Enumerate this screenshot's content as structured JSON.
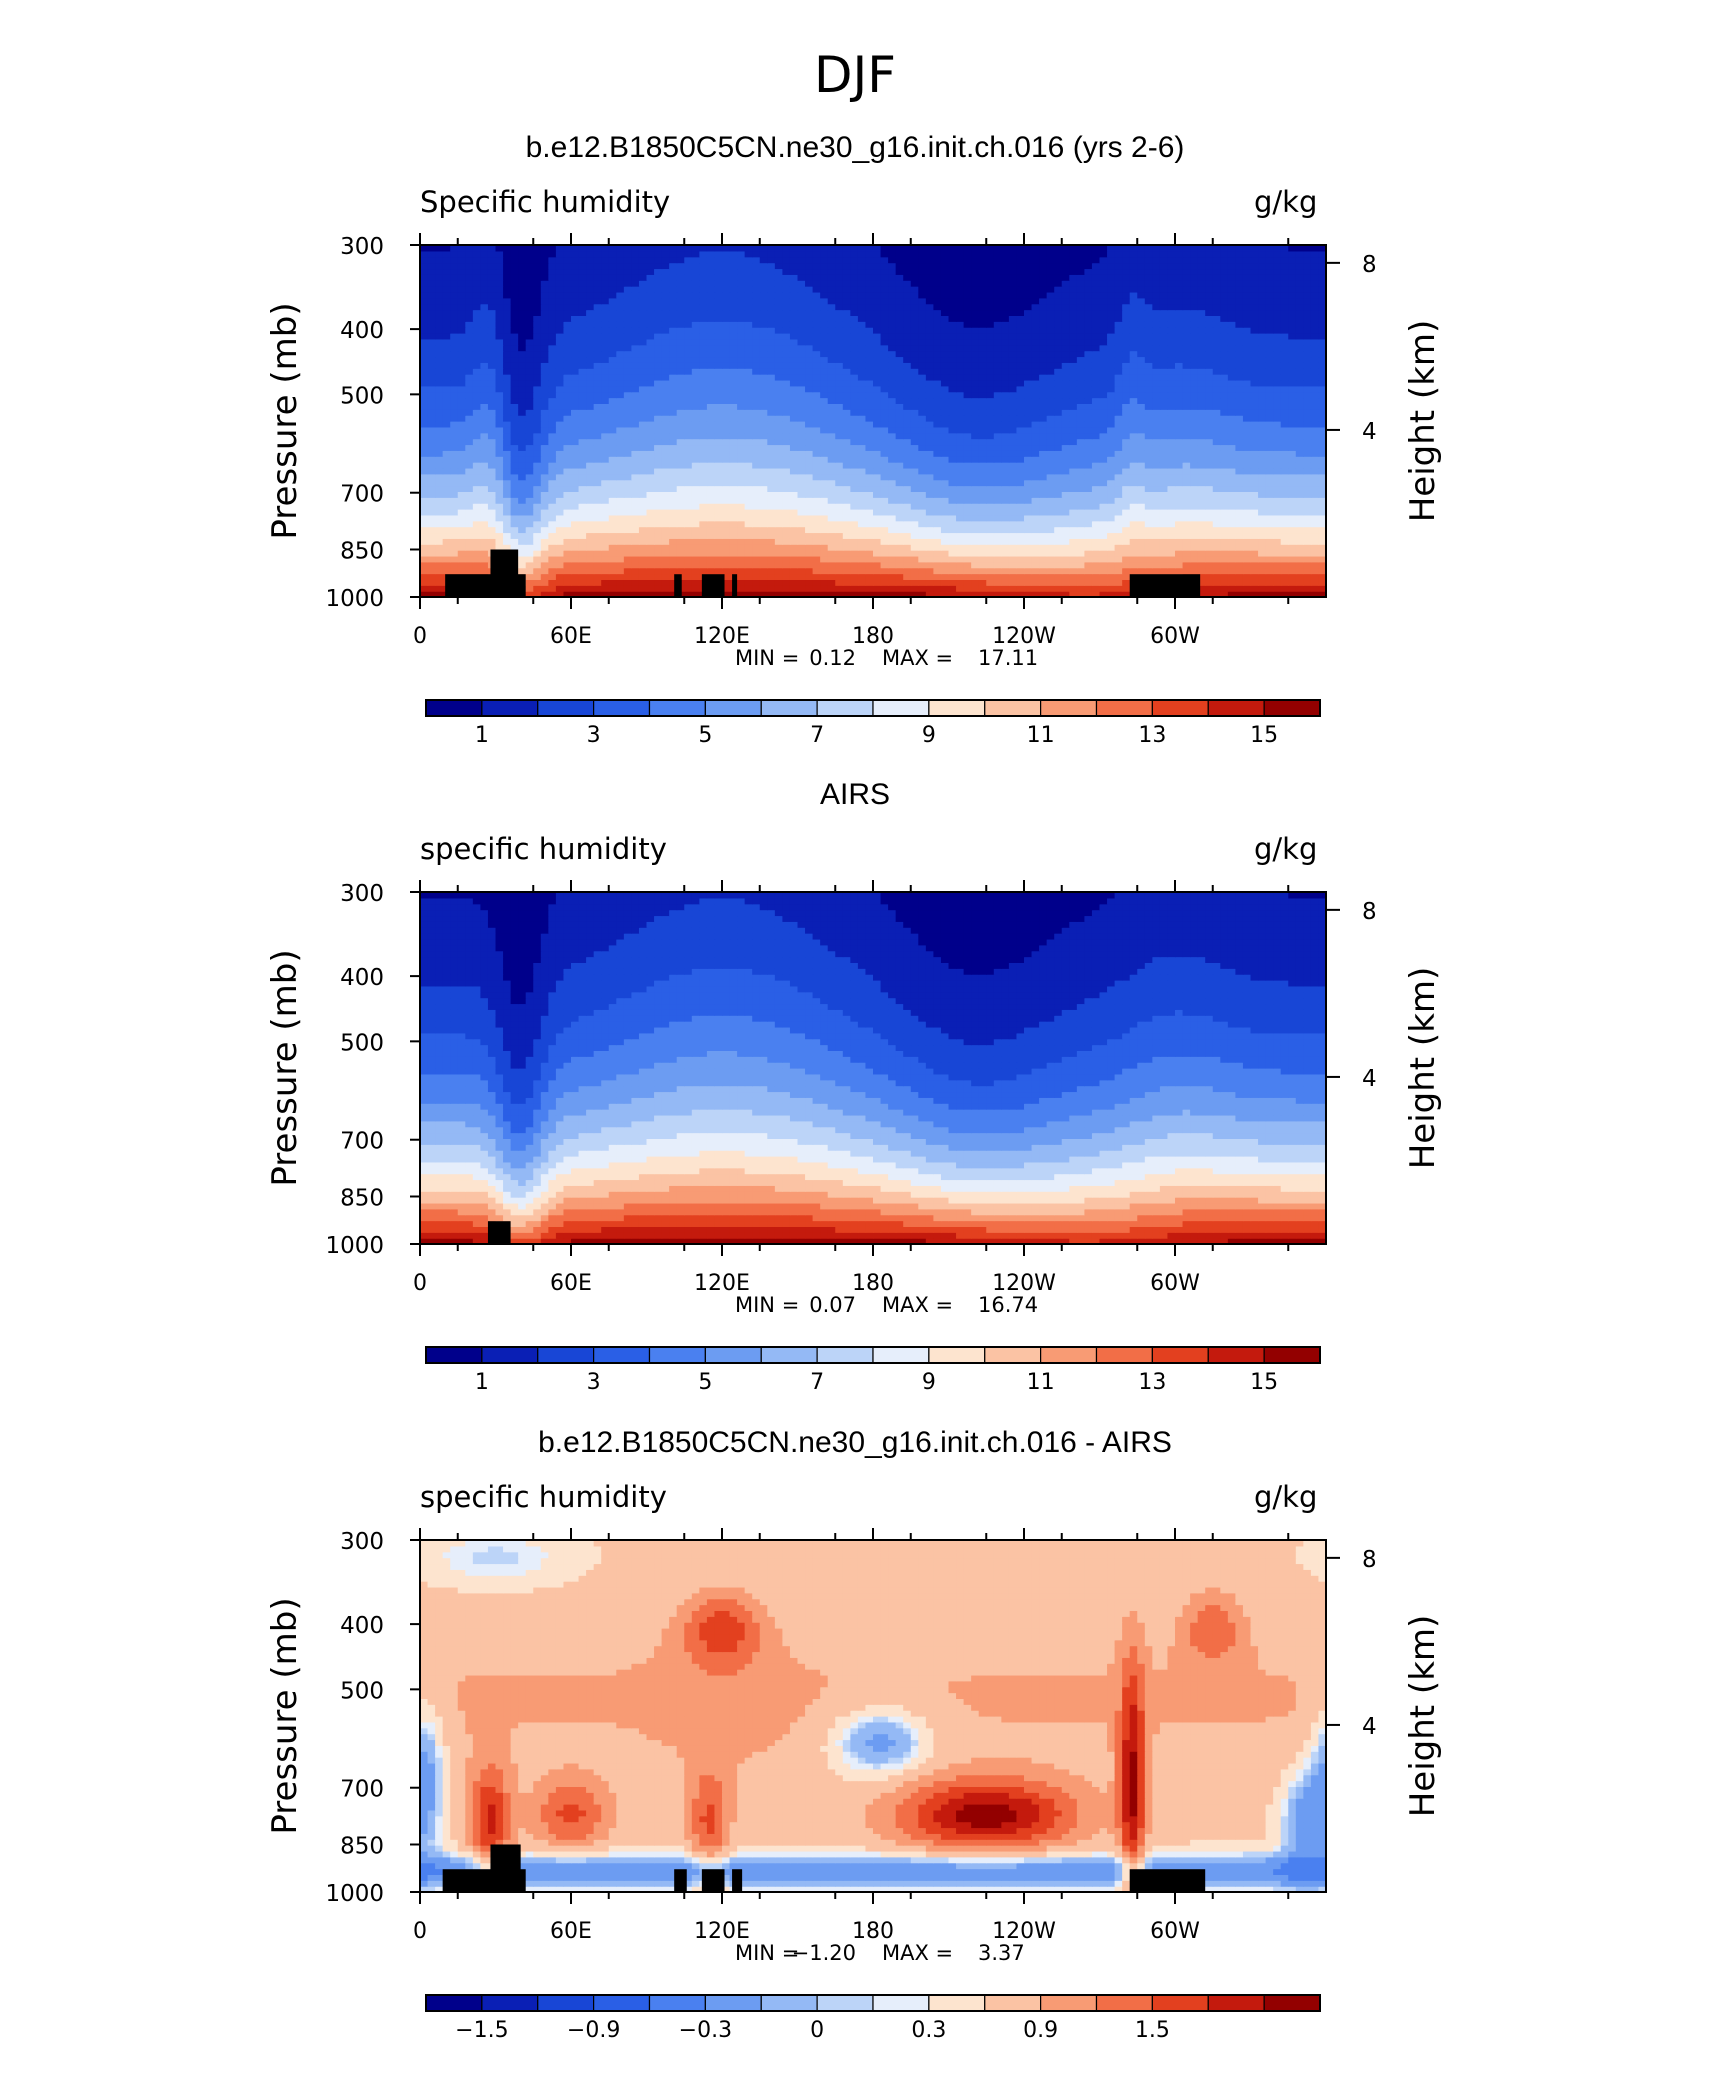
{
  "figure_title": "DJF",
  "colors": {
    "humidity_levels": [
      "#00008b",
      "#0a1fb5",
      "#1846d6",
      "#2a5fe6",
      "#4a80f0",
      "#6c9cf2",
      "#94b9f5",
      "#bcd4f8",
      "#e6eefb",
      "#fde4cf",
      "#fbc3a4",
      "#f89b74",
      "#f26e47",
      "#e3401f",
      "#c41a0d",
      "#930000"
    ],
    "difference_levels": [
      "#00008b",
      "#0a1fb5",
      "#1846d6",
      "#2a5fe6",
      "#4a80f0",
      "#6c9cf2",
      "#94b9f5",
      "#bcd4f8",
      "#e6eefb",
      "#fde4cf",
      "#fbc3a4",
      "#f89b74",
      "#f26e47",
      "#e3401f",
      "#c41a0d",
      "#930000"
    ],
    "topography": "#000000"
  },
  "chart_data": [
    {
      "type": "heatmap",
      "title": "b.e12.B1850C5CN.ne30_g16.init.ch.016 (yrs 2-6)",
      "left_label": "Specific humidity",
      "right_label": "g/kg",
      "ylabel": "Pressure (mb)",
      "y2label": "Height (km)",
      "y_ticks": [
        300,
        400,
        500,
        700,
        850,
        1000
      ],
      "y2_ticks": [
        8,
        4
      ],
      "x_ticks": [
        "0",
        "60E",
        "120E",
        "180",
        "120W",
        "60W"
      ],
      "xlim": [
        0,
        360
      ],
      "ylim": [
        1000,
        300
      ],
      "stats": {
        "min_label": "MIN =",
        "min": "0.12",
        "max_label": "MAX =",
        "max": "17.11"
      },
      "colorbar_labels": [
        "1",
        "3",
        "5",
        "7",
        "9",
        "11",
        "13",
        "15"
      ],
      "colorbar_levels": [
        1,
        2,
        3,
        4,
        5,
        6,
        7,
        8,
        9,
        10,
        11,
        12,
        13,
        14,
        15
      ]
    },
    {
      "type": "heatmap",
      "title": "AIRS",
      "left_label": "specific humidity",
      "right_label": "g/kg",
      "ylabel": "Pressure (mb)",
      "y2label": "Height (km)",
      "y_ticks": [
        300,
        400,
        500,
        700,
        850,
        1000
      ],
      "y2_ticks": [
        8,
        4
      ],
      "x_ticks": [
        "0",
        "60E",
        "120E",
        "180",
        "120W",
        "60W"
      ],
      "xlim": [
        0,
        360
      ],
      "ylim": [
        1000,
        300
      ],
      "stats": {
        "min_label": "MIN =",
        "min": "0.07",
        "max_label": "MAX =",
        "max": "16.74"
      },
      "colorbar_labels": [
        "1",
        "3",
        "5",
        "7",
        "9",
        "11",
        "13",
        "15"
      ],
      "colorbar_levels": [
        1,
        2,
        3,
        4,
        5,
        6,
        7,
        8,
        9,
        10,
        11,
        12,
        13,
        14,
        15
      ]
    },
    {
      "type": "heatmap",
      "title": "b.e12.B1850C5CN.ne30_g16.init.ch.016 - AIRS",
      "left_label": "specific humidity",
      "right_label": "g/kg",
      "ylabel": "Pressure (mb)",
      "y2label": "Height (km)",
      "y_ticks": [
        300,
        400,
        500,
        700,
        850,
        1000
      ],
      "y2_ticks": [
        8,
        4
      ],
      "x_ticks": [
        "0",
        "60E",
        "120E",
        "180",
        "120W",
        "60W"
      ],
      "xlim": [
        0,
        360
      ],
      "ylim": [
        1000,
        300
      ],
      "stats": {
        "min_label": "MIN =",
        "min": "−1.20",
        "max_label": "MAX =",
        "max": "3.37"
      },
      "colorbar_labels": [
        "−1.5",
        "−0.9",
        "−0.3",
        "0",
        "0.3",
        "0.9",
        "1.5"
      ],
      "colorbar_levels": [
        -1.8,
        -1.5,
        -1.2,
        -0.9,
        -0.6,
        -0.3,
        -0.1,
        0,
        0.1,
        0.3,
        0.6,
        0.9,
        1.2,
        1.5,
        1.8
      ]
    }
  ]
}
